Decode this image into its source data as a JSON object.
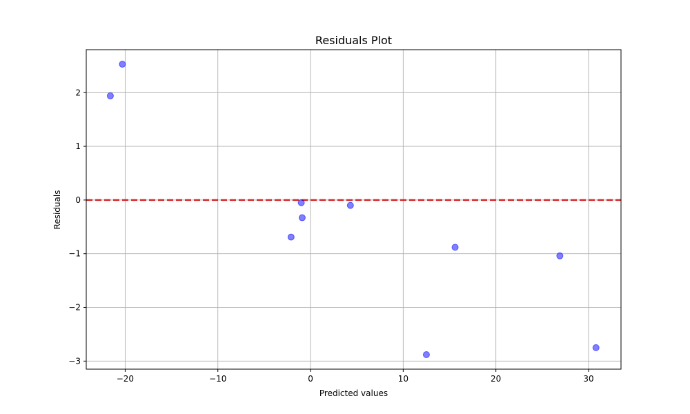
{
  "chart_data": {
    "type": "scatter",
    "title": "Residuals Plot",
    "xlabel": "Predicted values",
    "ylabel": "Residuals",
    "xlim": [
      -24.2,
      33.5
    ],
    "ylim": [
      -3.15,
      2.8
    ],
    "xticks": [
      -20,
      -10,
      0,
      10,
      20,
      30
    ],
    "yticks": [
      -3,
      -2,
      -1,
      0,
      1,
      2
    ],
    "xtick_labels": [
      "−20",
      "−10",
      "0",
      "10",
      "20",
      "30"
    ],
    "ytick_labels": [
      "−3",
      "−2",
      "−1",
      "0",
      "1",
      "2"
    ],
    "grid": true,
    "points": [
      {
        "x": -21.6,
        "y": 1.94
      },
      {
        "x": -20.3,
        "y": 2.53
      },
      {
        "x": -2.1,
        "y": -0.69
      },
      {
        "x": -1.0,
        "y": -0.05
      },
      {
        "x": -0.9,
        "y": -0.33
      },
      {
        "x": 4.3,
        "y": -0.1
      },
      {
        "x": 12.5,
        "y": -2.88
      },
      {
        "x": 15.6,
        "y": -0.88
      },
      {
        "x": 26.9,
        "y": -1.04
      },
      {
        "x": 30.8,
        "y": -2.75
      }
    ],
    "reference_line": {
      "y": 0,
      "style": "dashed"
    },
    "colors": {
      "points": "#0000ff",
      "reference_line": "#d62728",
      "grid": "#b0b0b0"
    }
  }
}
